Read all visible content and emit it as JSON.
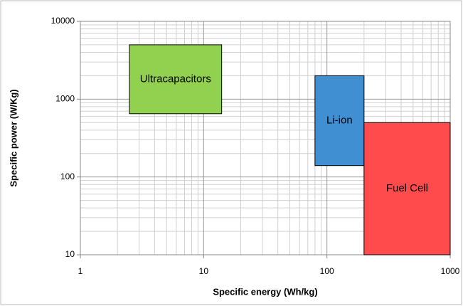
{
  "chart_data": {
    "type": "range",
    "x_label": "Specific energy (Wh/kg)",
    "y_label": "Specific power (W/Kg)",
    "x_log": true,
    "y_log": true,
    "grid": true,
    "minor_grid": true,
    "xlim": [
      1,
      1000
    ],
    "xticks": [
      1,
      10,
      100,
      1000
    ],
    "ylim": [
      10,
      10000
    ],
    "yticks": [
      10,
      100,
      1000,
      10000
    ],
    "series": [
      {
        "name": "Ultracapacitors",
        "color": "#92d050",
        "x": [
          2.5,
          14
        ],
        "y": [
          650,
          5000
        ]
      },
      {
        "name": "Li-ion",
        "color": "#3f8fd2",
        "x": [
          80,
          200
        ],
        "y": [
          140,
          2000
        ]
      },
      {
        "name": "Fuel Cell",
        "color": "#ff4b4b",
        "x": [
          200,
          1000
        ],
        "y": [
          10,
          500
        ]
      }
    ]
  }
}
